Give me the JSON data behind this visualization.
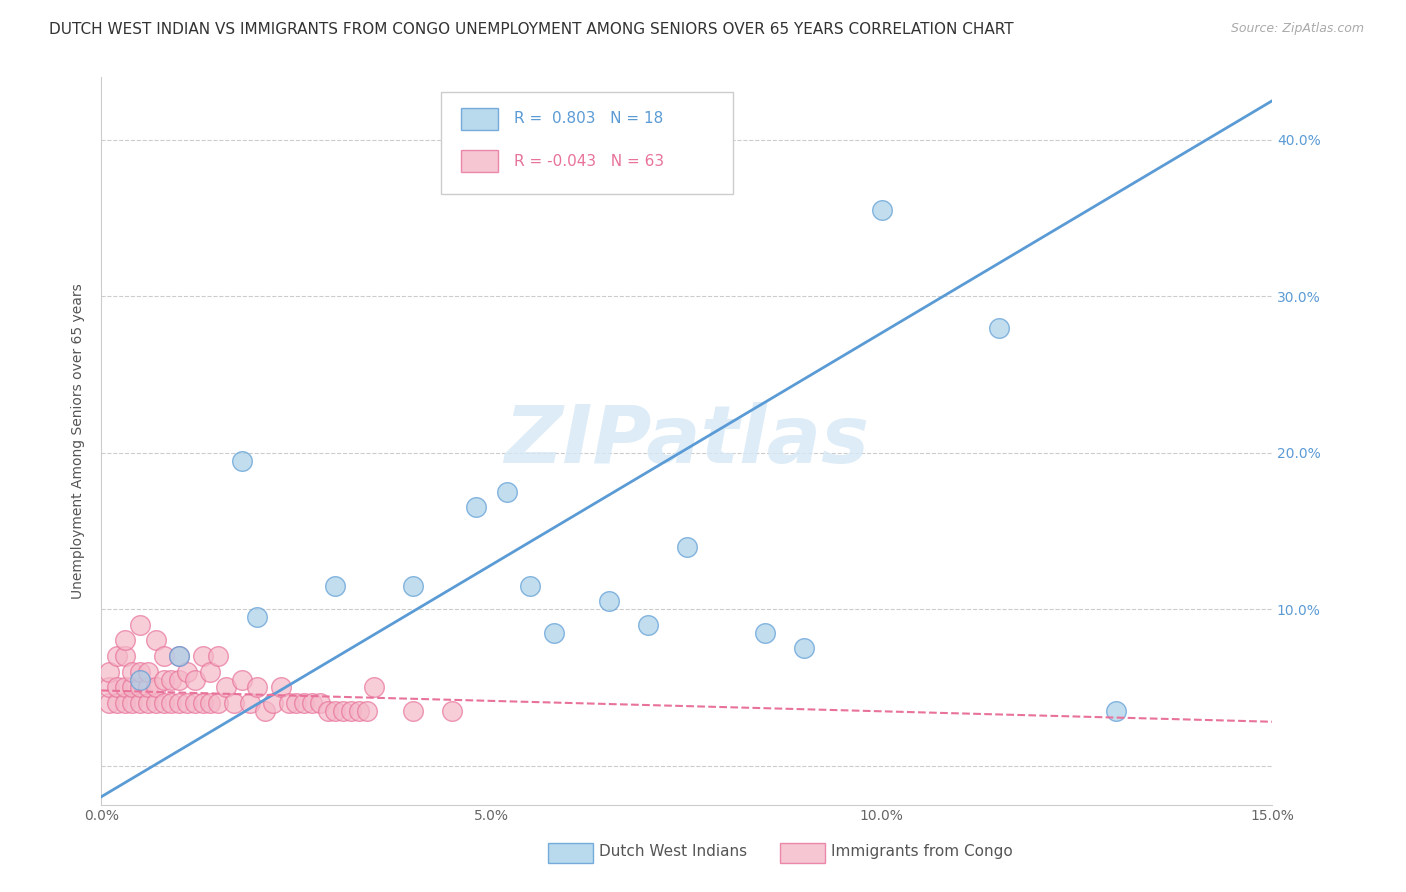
{
  "title": "DUTCH WEST INDIAN VS IMMIGRANTS FROM CONGO UNEMPLOYMENT AMONG SENIORS OVER 65 YEARS CORRELATION CHART",
  "source": "Source: ZipAtlas.com",
  "ylabel": "Unemployment Among Seniors over 65 years",
  "xlim": [
    0.0,
    0.15
  ],
  "ylim": [
    -0.025,
    0.44
  ],
  "xticks": [
    0.0,
    0.05,
    0.1,
    0.15
  ],
  "xtick_labels": [
    "0.0%",
    "5.0%",
    "10.0%",
    "15.0%"
  ],
  "yticks": [
    0.0,
    0.1,
    0.2,
    0.3,
    0.4
  ],
  "ytick_labels_left": [
    "",
    "",
    "",
    "",
    ""
  ],
  "ytick_labels_right": [
    "",
    "10.0%",
    "20.0%",
    "30.0%",
    "40.0%"
  ],
  "background_color": "#ffffff",
  "watermark_text": "ZIPatlas",
  "blue_scatter_color": "#a8d0e8",
  "blue_edge_color": "#5b9bd5",
  "pink_scatter_color": "#f4b8c8",
  "pink_edge_color": "#e8729a",
  "blue_line_color": "#5b9bd5",
  "pink_line_color": "#e8729a",
  "right_ytick_color": "#5b9bd5",
  "R_blue": 0.803,
  "N_blue": 18,
  "R_pink": -0.043,
  "N_pink": 63,
  "blue_line_x0": 0.0,
  "blue_line_y0": -0.02,
  "blue_line_x1": 0.15,
  "blue_line_y1": 0.425,
  "pink_line_x0": 0.0,
  "pink_line_y0": 0.048,
  "pink_line_x1": 0.15,
  "pink_line_y1": 0.028,
  "blue_scatter_x": [
    0.005,
    0.01,
    0.018,
    0.02,
    0.03,
    0.04,
    0.048,
    0.052,
    0.055,
    0.058,
    0.065,
    0.07,
    0.075,
    0.085,
    0.09,
    0.1,
    0.115,
    0.13
  ],
  "blue_scatter_y": [
    0.055,
    0.07,
    0.195,
    0.095,
    0.115,
    0.115,
    0.165,
    0.175,
    0.115,
    0.085,
    0.105,
    0.09,
    0.14,
    0.085,
    0.075,
    0.355,
    0.28,
    0.035
  ],
  "pink_scatter_x": [
    0.001,
    0.001,
    0.001,
    0.002,
    0.002,
    0.002,
    0.003,
    0.003,
    0.003,
    0.003,
    0.004,
    0.004,
    0.004,
    0.005,
    0.005,
    0.005,
    0.005,
    0.006,
    0.006,
    0.006,
    0.007,
    0.007,
    0.007,
    0.008,
    0.008,
    0.008,
    0.009,
    0.009,
    0.01,
    0.01,
    0.01,
    0.011,
    0.011,
    0.012,
    0.012,
    0.013,
    0.013,
    0.014,
    0.014,
    0.015,
    0.015,
    0.016,
    0.017,
    0.018,
    0.019,
    0.02,
    0.021,
    0.022,
    0.023,
    0.024,
    0.025,
    0.026,
    0.027,
    0.028,
    0.029,
    0.03,
    0.031,
    0.032,
    0.033,
    0.034,
    0.035,
    0.04,
    0.045
  ],
  "pink_scatter_y": [
    0.04,
    0.05,
    0.06,
    0.04,
    0.05,
    0.07,
    0.04,
    0.05,
    0.07,
    0.08,
    0.04,
    0.05,
    0.06,
    0.04,
    0.05,
    0.06,
    0.09,
    0.04,
    0.05,
    0.06,
    0.04,
    0.05,
    0.08,
    0.04,
    0.055,
    0.07,
    0.04,
    0.055,
    0.04,
    0.055,
    0.07,
    0.04,
    0.06,
    0.04,
    0.055,
    0.04,
    0.07,
    0.04,
    0.06,
    0.04,
    0.07,
    0.05,
    0.04,
    0.055,
    0.04,
    0.05,
    0.035,
    0.04,
    0.05,
    0.04,
    0.04,
    0.04,
    0.04,
    0.04,
    0.035,
    0.035,
    0.035,
    0.035,
    0.035,
    0.035,
    0.05,
    0.035,
    0.035
  ],
  "title_fontsize": 11,
  "axis_label_fontsize": 10,
  "tick_fontsize": 10,
  "legend_fontsize": 11
}
